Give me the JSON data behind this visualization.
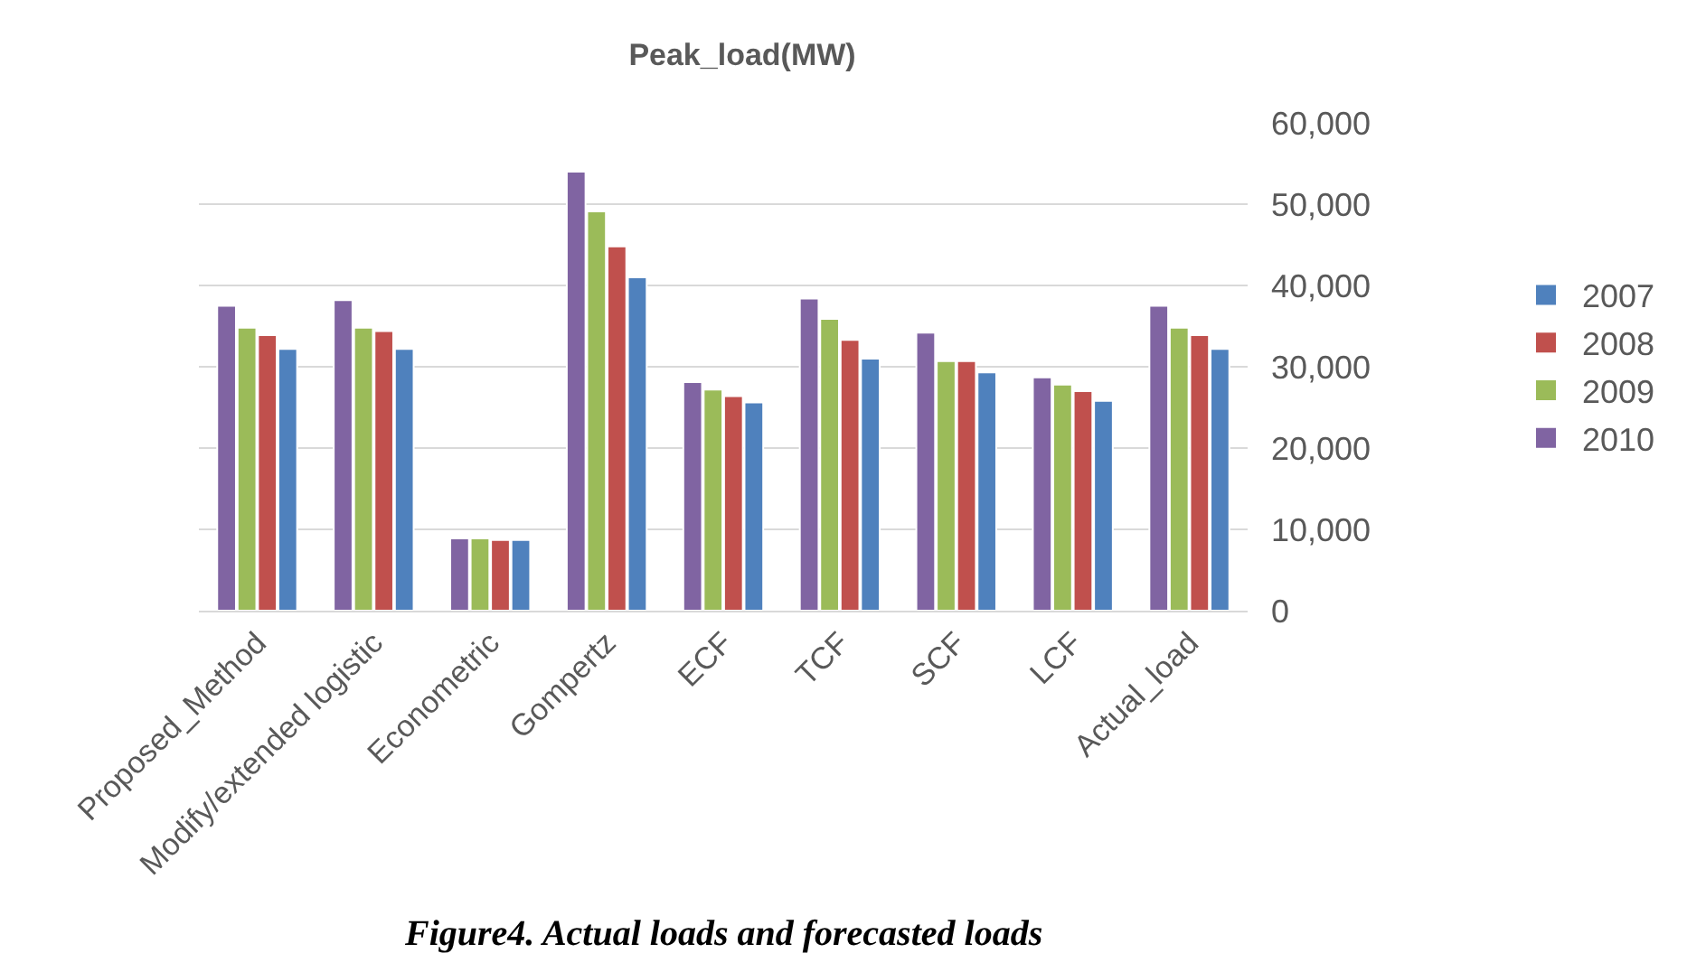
{
  "chart_data": {
    "type": "bar",
    "title": "Peak_load(MW)",
    "categories": [
      "Proposed_Method",
      "Modify/extended logistic",
      "Econometric",
      "Gompertz",
      "ECF",
      "TCF",
      "SCF",
      "LCF",
      "Actual_load"
    ],
    "series": [
      {
        "name": "2010",
        "color": "#8064a2",
        "values": [
          37500,
          38200,
          8900,
          54000,
          28100,
          38400,
          34200,
          28700,
          37500
        ]
      },
      {
        "name": "2009",
        "color": "#9bbb59",
        "values": [
          34800,
          34800,
          8900,
          49100,
          27200,
          35900,
          30700,
          27800,
          34800
        ]
      },
      {
        "name": "2008",
        "color": "#c0504d",
        "values": [
          33900,
          34400,
          8700,
          44800,
          26400,
          33300,
          30700,
          27000,
          33900
        ]
      },
      {
        "name": "2007",
        "color": "#4f81bd",
        "values": [
          32200,
          32200,
          8700,
          41000,
          25600,
          31000,
          29300,
          25800,
          32200
        ]
      }
    ],
    "ylim": [
      0,
      60000
    ],
    "yticks": [
      0,
      {
        "value": 10000,
        "label": "10,000"
      },
      {
        "value": 20000,
        "label": "20,000"
      },
      {
        "value": 30000,
        "label": "30,000"
      },
      {
        "value": 40000,
        "label": "40,000"
      },
      {
        "value": 50000,
        "label": "50,000"
      },
      {
        "value": 60000,
        "label": "60,000"
      }
    ],
    "grid": "y",
    "legend": "right",
    "annotations": [
      "Figure4. Actual loads and forecasted loads"
    ]
  }
}
